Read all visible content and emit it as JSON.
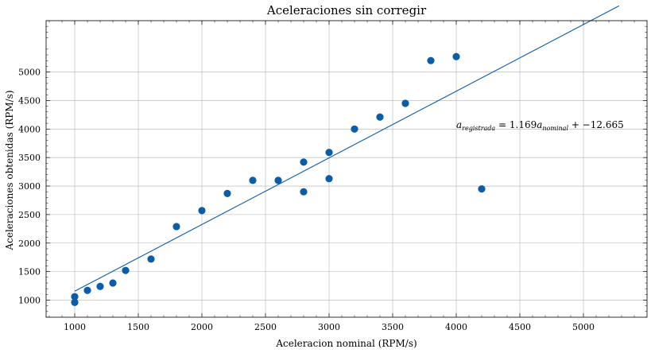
{
  "chart_data": {
    "type": "scatter",
    "title": "Aceleraciones sin corregir",
    "xlabel": "Aceleracion nominal (RPM/s)",
    "ylabel": "Aceleraciones obtenidas (RPM/s)",
    "xlim": [
      775,
      5500
    ],
    "ylim": [
      700,
      5900
    ],
    "xticks": [
      1000,
      1500,
      2000,
      2500,
      3000,
      3500,
      4000,
      4500,
      5000
    ],
    "yticks": [
      1000,
      1500,
      2000,
      2500,
      3000,
      3500,
      4000,
      4500,
      5000
    ],
    "grid": true,
    "point_color": "#0c5da5",
    "line_color": "#0c5da5",
    "points": [
      {
        "x": 1000,
        "y": 960
      },
      {
        "x": 1000,
        "y": 1060
      },
      {
        "x": 1100,
        "y": 1170
      },
      {
        "x": 1200,
        "y": 1240
      },
      {
        "x": 1300,
        "y": 1300
      },
      {
        "x": 1400,
        "y": 1520
      },
      {
        "x": 1600,
        "y": 1720
      },
      {
        "x": 1800,
        "y": 2290
      },
      {
        "x": 2000,
        "y": 2570
      },
      {
        "x": 2200,
        "y": 2870
      },
      {
        "x": 2400,
        "y": 3100
      },
      {
        "x": 2600,
        "y": 3100
      },
      {
        "x": 2800,
        "y": 2900
      },
      {
        "x": 2800,
        "y": 3420
      },
      {
        "x": 3000,
        "y": 3130
      },
      {
        "x": 3000,
        "y": 3590
      },
      {
        "x": 3200,
        "y": 4000
      },
      {
        "x": 3400,
        "y": 4210
      },
      {
        "x": 3600,
        "y": 4450
      },
      {
        "x": 3800,
        "y": 5200
      },
      {
        "x": 4000,
        "y": 5270
      },
      {
        "x": 4200,
        "y": 2950
      }
    ],
    "fit": {
      "slope": 1.169,
      "intercept": -12.665,
      "x_start": 1000,
      "x_end": 5280
    },
    "annotation": {
      "x": 4000,
      "y": 4020,
      "a_symbol": "a",
      "sub1": "registrada",
      "eq_mid": " = 1.169",
      "sub2": "nominal",
      "eq_end": " + −12.665"
    }
  }
}
